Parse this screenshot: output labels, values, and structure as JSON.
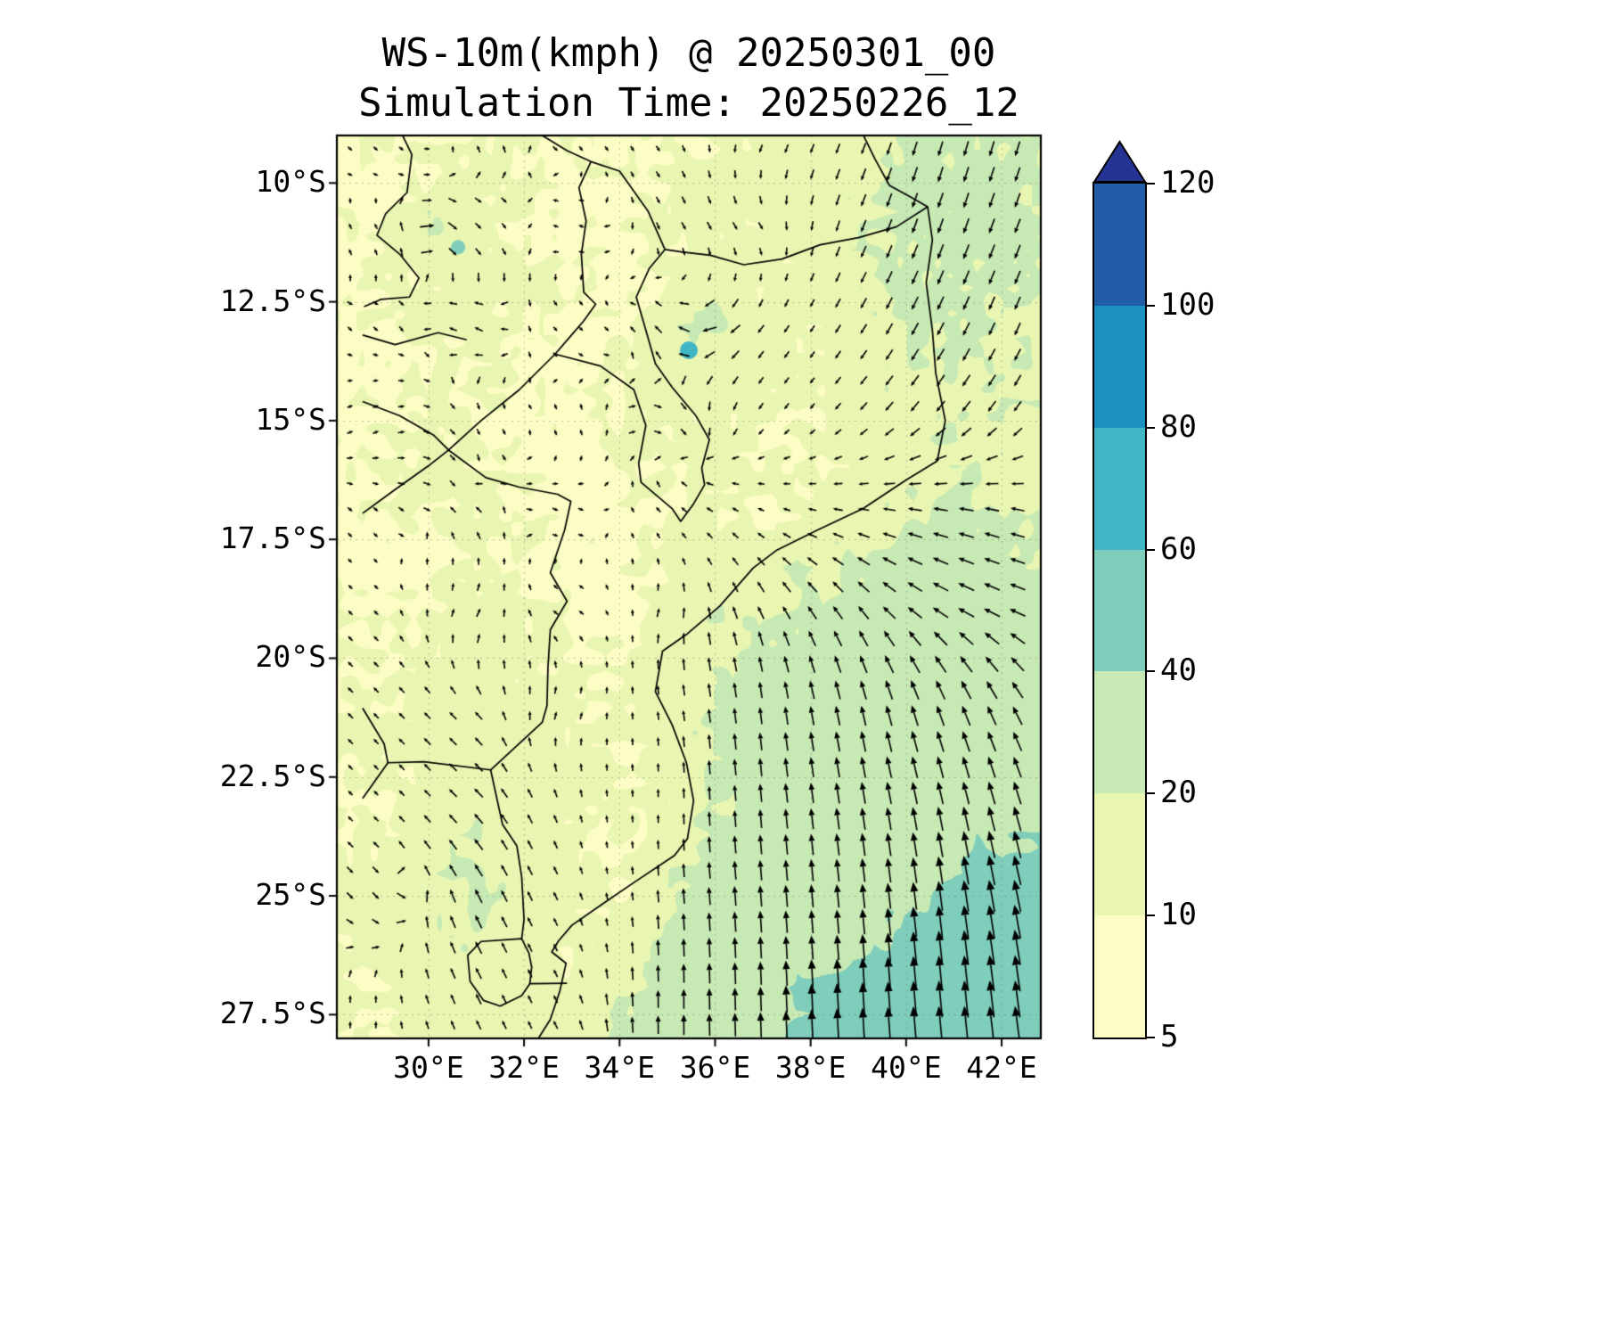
{
  "title": {
    "line1": "WS-10m(kmph) @ 20250301_00",
    "line2": "Simulation Time: 20250226_12"
  },
  "chart_data": {
    "type": "heatmap",
    "subtype": "filled_contour_wind_map_with_quiver",
    "title": "WS-10m(kmph) @ 20250301_00",
    "subtitle": "Simulation Time: 20250226_12",
    "variable": "WS-10m",
    "unit": "kmph",
    "valid_time_label": "20250301_00",
    "simulation_time_label": "20250226_12",
    "x_axis": {
      "tick_values": [
        30,
        32,
        34,
        36,
        38,
        40,
        42
      ],
      "tick_labels": [
        "30°E",
        "32°E",
        "34°E",
        "36°E",
        "38°E",
        "40°E",
        "42°E"
      ],
      "lon_min": 28.08,
      "lon_max": 42.82
    },
    "y_axis": {
      "tick_values": [
        10,
        12.5,
        15,
        17.5,
        20,
        22.5,
        25,
        27.5
      ],
      "tick_labels": [
        "10°S",
        "12.5°S",
        "15°S",
        "17.5°S",
        "20°S",
        "22.5°S",
        "25°S",
        "27.5°S"
      ],
      "lat_south_min": 9.0,
      "lat_south_max": 28.0
    },
    "graticule": true,
    "colorbar": {
      "levels": [
        5,
        10,
        20,
        40,
        60,
        80,
        100,
        120
      ],
      "tick_labels": [
        "5",
        "10",
        "20",
        "40",
        "60",
        "80",
        "100",
        "120"
      ],
      "band_colors": [
        "#fcfdc4",
        "#e9f6b1",
        "#c7e9b4",
        "#7fcdbb",
        "#41b6c4",
        "#1d91c0",
        "#225ea8"
      ],
      "extend_color": "#253494",
      "below_min_color": "#ffffff"
    },
    "speed_grid": {
      "lon_start": 29,
      "lon_step": 1,
      "lat_start": 9,
      "lat_step": 1,
      "values": [
        [
          9,
          8,
          10,
          12,
          9,
          8,
          10,
          11,
          12,
          14,
          16,
          20,
          22,
          22,
          21,
          20
        ],
        [
          8,
          10,
          12,
          10,
          8,
          9,
          11,
          12,
          13,
          15,
          18,
          22,
          23,
          22,
          21,
          20
        ],
        [
          9,
          22,
          12,
          9,
          8,
          10,
          12,
          13,
          12,
          14,
          18,
          22,
          23,
          22,
          21,
          19
        ],
        [
          10,
          12,
          14,
          12,
          9,
          8,
          10,
          12,
          11,
          13,
          17,
          21,
          22,
          21,
          20,
          18
        ],
        [
          9,
          11,
          13,
          10,
          8,
          9,
          16,
          22,
          14,
          12,
          16,
          20,
          21,
          20,
          19,
          17
        ],
        [
          8,
          10,
          12,
          9,
          8,
          10,
          14,
          16,
          12,
          11,
          15,
          19,
          20,
          19,
          18,
          16
        ],
        [
          9,
          11,
          10,
          8,
          9,
          10,
          12,
          13,
          11,
          10,
          14,
          18,
          19,
          18,
          17,
          15
        ],
        [
          10,
          12,
          11,
          9,
          8,
          9,
          11,
          12,
          10,
          11,
          13,
          17,
          18,
          17,
          16,
          14
        ],
        [
          9,
          11,
          12,
          10,
          9,
          8,
          10,
          11,
          10,
          12,
          16,
          20,
          22,
          21,
          19,
          17
        ],
        [
          8,
          10,
          11,
          9,
          8,
          9,
          10,
          13,
          16,
          18,
          21,
          23,
          24,
          23,
          21,
          19
        ],
        [
          9,
          11,
          13,
          11,
          9,
          8,
          14,
          18,
          20,
          22,
          23,
          25,
          26,
          25,
          23,
          21
        ],
        [
          10,
          12,
          14,
          12,
          10,
          9,
          16,
          20,
          22,
          25,
          26,
          28,
          28,
          27,
          25,
          23
        ],
        [
          11,
          13,
          15,
          13,
          11,
          10,
          13,
          20,
          24,
          27,
          28,
          30,
          30,
          29,
          27,
          25
        ],
        [
          10,
          14,
          16,
          14,
          12,
          10,
          13,
          22,
          26,
          28,
          30,
          31,
          31,
          30,
          29,
          27
        ],
        [
          9,
          13,
          18,
          15,
          12,
          10,
          12,
          20,
          26,
          29,
          31,
          32,
          33,
          34,
          34,
          33
        ],
        [
          12,
          16,
          20,
          15,
          11,
          10,
          14,
          24,
          28,
          30,
          32,
          34,
          38,
          40,
          40,
          38
        ],
        [
          13,
          18,
          22,
          16,
          12,
          10,
          20,
          26,
          30,
          32,
          34,
          38,
          44,
          46,
          46,
          45
        ],
        [
          12,
          16,
          20,
          14,
          11,
          14,
          24,
          28,
          31,
          33,
          36,
          44,
          48,
          50,
          50,
          48
        ],
        [
          11,
          14,
          17,
          13,
          12,
          18,
          26,
          30,
          34,
          42,
          46,
          50,
          52,
          52,
          52,
          50
        ],
        [
          10,
          12,
          14,
          12,
          14,
          22,
          28,
          32,
          36,
          44,
          48,
          52,
          53,
          53,
          53,
          51
        ]
      ]
    },
    "wind_uv_grid": {
      "lon_start": 29,
      "lon_step": 2,
      "lat_start": 9,
      "lat_step": 2,
      "u": [
        [
          2,
          -1,
          1,
          2,
          -2,
          -3,
          -4,
          -5
        ],
        [
          -1,
          2,
          -2,
          1,
          2,
          -4,
          -5,
          -6
        ],
        [
          1,
          -2,
          2,
          -2,
          -3,
          -5,
          -6,
          -5
        ],
        [
          2,
          1,
          -1,
          2,
          -2,
          -6,
          -7,
          -6
        ],
        [
          1,
          -1,
          2,
          -2,
          -4,
          -10,
          -14,
          -15
        ],
        [
          -1,
          1,
          -2,
          1,
          -3,
          -8,
          -14,
          -16
        ],
        [
          -2,
          -1,
          1,
          -1,
          -2,
          -5,
          -8,
          -10
        ],
        [
          -1,
          -2,
          -1,
          0,
          -2,
          -4,
          -6,
          -8
        ],
        [
          1,
          -1,
          -2,
          -1,
          -2,
          -3,
          -5,
          -8
        ],
        [
          0,
          -1,
          -2,
          0,
          -1,
          -2,
          -4,
          -6
        ]
      ],
      "v": [
        [
          -2,
          2,
          -1,
          -3,
          -4,
          -8,
          -14,
          -16
        ],
        [
          2,
          -2,
          1,
          -2,
          -3,
          -10,
          -14,
          -15
        ],
        [
          -1,
          1,
          -2,
          2,
          -4,
          -8,
          -12,
          -12
        ],
        [
          1,
          -2,
          2,
          -1,
          -3,
          -6,
          -8,
          -8
        ],
        [
          -1,
          1,
          -1,
          2,
          2,
          2,
          3,
          4
        ],
        [
          1,
          2,
          1,
          3,
          6,
          10,
          8,
          6
        ],
        [
          2,
          1,
          2,
          6,
          16,
          22,
          20,
          16
        ],
        [
          1,
          2,
          3,
          10,
          22,
          26,
          26,
          24
        ],
        [
          -1,
          2,
          4,
          14,
          26,
          30,
          36,
          34
        ],
        [
          1,
          2,
          4,
          18,
          28,
          34,
          42,
          40
        ]
      ]
    },
    "lakes": [
      {
        "lon": 30.62,
        "lat": 11.35,
        "radius_px": 8,
        "value": 55
      },
      {
        "lon": 35.45,
        "lat": 13.52,
        "radius_px": 10,
        "value": 65
      }
    ],
    "borders": [
      [
        [
          39.0,
          8.78
        ],
        [
          39.35,
          9.5
        ],
        [
          39.65,
          10.05
        ],
        [
          40.1,
          10.3
        ],
        [
          40.45,
          10.5
        ],
        [
          40.55,
          11.2
        ],
        [
          40.42,
          12.1
        ],
        [
          40.55,
          13.1
        ],
        [
          40.62,
          14.0
        ],
        [
          40.82,
          15.0
        ],
        [
          40.65,
          15.85
        ],
        [
          40.0,
          16.25
        ],
        [
          39.1,
          16.85
        ],
        [
          38.15,
          17.3
        ],
        [
          37.3,
          17.72
        ],
        [
          36.8,
          18.1
        ],
        [
          36.1,
          18.9
        ],
        [
          35.4,
          19.5
        ],
        [
          34.9,
          19.85
        ],
        [
          34.75,
          20.7
        ],
        [
          35.1,
          21.4
        ],
        [
          35.4,
          22.2
        ],
        [
          35.55,
          23.0
        ],
        [
          35.42,
          23.8
        ],
        [
          35.15,
          24.15
        ],
        [
          34.3,
          24.72
        ],
        [
          33.6,
          25.2
        ],
        [
          33.0,
          25.62
        ],
        [
          32.72,
          25.95
        ],
        [
          32.58,
          26.18
        ],
        [
          32.88,
          26.42
        ],
        [
          32.75,
          27.0
        ],
        [
          32.55,
          27.6
        ],
        [
          32.3,
          28.0
        ]
      ],
      [
        [
          40.45,
          10.5
        ],
        [
          39.8,
          10.92
        ],
        [
          39.0,
          11.15
        ],
        [
          38.2,
          11.3
        ],
        [
          37.4,
          11.6
        ],
        [
          36.6,
          11.72
        ],
        [
          35.9,
          11.52
        ],
        [
          35.3,
          11.45
        ],
        [
          34.95,
          11.4
        ]
      ],
      [
        [
          34.95,
          11.4
        ],
        [
          34.6,
          10.6
        ],
        [
          34.0,
          9.75
        ],
        [
          33.4,
          9.55
        ],
        [
          32.9,
          9.32
        ],
        [
          32.3,
          8.95
        ],
        [
          31.95,
          8.78
        ]
      ],
      [
        [
          33.4,
          9.55
        ],
        [
          33.15,
          10.1
        ],
        [
          33.3,
          10.8
        ],
        [
          33.2,
          11.5
        ],
        [
          33.25,
          12.3
        ],
        [
          33.5,
          12.55
        ],
        [
          33.25,
          12.9
        ],
        [
          32.95,
          13.25
        ],
        [
          32.65,
          13.6
        ],
        [
          33.6,
          13.85
        ],
        [
          34.3,
          14.35
        ],
        [
          34.55,
          15.1
        ],
        [
          34.4,
          15.9
        ],
        [
          34.45,
          16.3
        ],
        [
          35.1,
          16.85
        ],
        [
          35.28,
          17.12
        ],
        [
          35.55,
          16.75
        ],
        [
          35.78,
          16.35
        ],
        [
          35.72,
          16.0
        ],
        [
          35.88,
          15.4
        ],
        [
          35.6,
          14.9
        ],
        [
          35.1,
          14.3
        ],
        [
          34.75,
          13.8
        ],
        [
          34.58,
          13.2
        ],
        [
          34.35,
          12.4
        ],
        [
          34.62,
          11.8
        ],
        [
          34.95,
          11.4
        ]
      ],
      [
        [
          28.62,
          14.6
        ],
        [
          29.4,
          14.9
        ],
        [
          30.1,
          15.3
        ],
        [
          30.42,
          15.62
        ],
        [
          31.2,
          16.2
        ],
        [
          31.9,
          16.4
        ],
        [
          32.7,
          16.55
        ],
        [
          32.98,
          16.7
        ],
        [
          32.85,
          17.3
        ],
        [
          32.55,
          18.2
        ],
        [
          32.9,
          18.8
        ],
        [
          32.55,
          19.4
        ],
        [
          32.5,
          20.2
        ],
        [
          32.48,
          21.0
        ],
        [
          32.38,
          21.35
        ],
        [
          31.3,
          22.35
        ]
      ],
      [
        [
          28.62,
          16.95
        ],
        [
          29.3,
          16.45
        ],
        [
          30.0,
          15.95
        ],
        [
          30.42,
          15.62
        ]
      ],
      [
        [
          30.42,
          15.62
        ],
        [
          31.1,
          15.0
        ],
        [
          31.9,
          14.35
        ],
        [
          32.65,
          13.6
        ]
      ],
      [
        [
          28.62,
          22.95
        ],
        [
          29.15,
          22.2
        ],
        [
          29.9,
          22.18
        ],
        [
          31.3,
          22.35
        ],
        [
          31.55,
          23.5
        ],
        [
          31.85,
          23.95
        ],
        [
          31.95,
          24.6
        ],
        [
          32.0,
          25.5
        ],
        [
          31.95,
          25.9
        ]
      ],
      [
        [
          31.95,
          25.9
        ],
        [
          31.1,
          25.96
        ],
        [
          30.82,
          26.25
        ],
        [
          30.87,
          26.8
        ],
        [
          31.15,
          27.2
        ],
        [
          31.5,
          27.32
        ],
        [
          31.95,
          27.1
        ],
        [
          32.12,
          26.85
        ],
        [
          32.16,
          26.5
        ],
        [
          32.1,
          26.2
        ],
        [
          31.95,
          25.9
        ]
      ],
      [
        [
          32.12,
          26.85
        ],
        [
          32.9,
          26.84
        ]
      ],
      [
        [
          29.35,
          8.78
        ],
        [
          29.65,
          9.4
        ],
        [
          29.55,
          10.2
        ],
        [
          29.1,
          10.65
        ],
        [
          28.92,
          11.1
        ],
        [
          29.4,
          11.5
        ],
        [
          29.8,
          12.0
        ],
        [
          29.6,
          12.4
        ],
        [
          29.0,
          12.45
        ],
        [
          28.65,
          12.6
        ]
      ],
      [
        [
          28.62,
          13.2
        ],
        [
          29.3,
          13.4
        ],
        [
          30.2,
          13.15
        ],
        [
          30.8,
          13.3
        ]
      ],
      [
        [
          28.62,
          21.05
        ],
        [
          29.07,
          21.8
        ],
        [
          29.15,
          22.2
        ]
      ]
    ]
  }
}
